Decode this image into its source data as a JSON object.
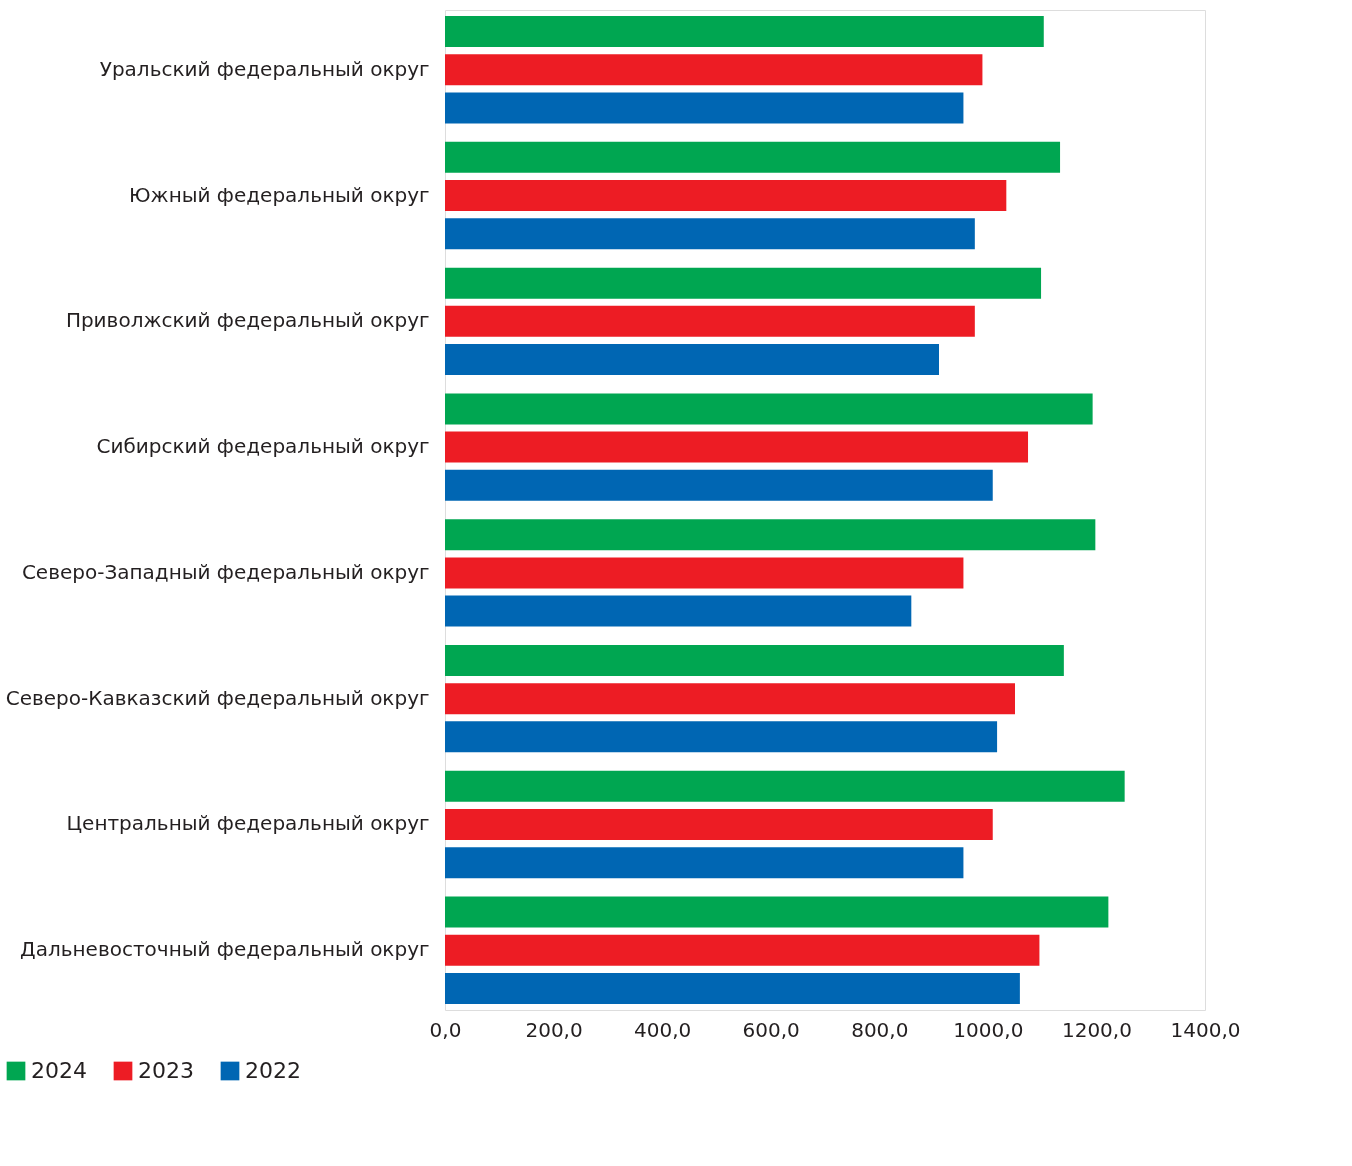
{
  "chart_data": {
    "type": "bar",
    "orientation": "horizontal",
    "categories": [
      "Уральский федеральный округ",
      "Южный федеральный округ",
      "Приволжский федеральный округ",
      "Сибирский федеральный округ",
      "Северо-Западный федеральный округ",
      "Северо-Кавказский федеральный округ",
      "Центральный федеральный округ",
      "Дальневосточный федеральный округ"
    ],
    "series": [
      {
        "name": "2024",
        "color": "#00a651",
        "values": [
          1103,
          1133,
          1098,
          1193,
          1198,
          1140,
          1252,
          1222
        ]
      },
      {
        "name": "2023",
        "color": "#ed1c24",
        "values": [
          990,
          1034,
          976,
          1074,
          955,
          1050,
          1009,
          1095
        ]
      },
      {
        "name": "2022",
        "color": "#0066b3",
        "values": [
          955,
          976,
          910,
          1009,
          859,
          1017,
          955,
          1059
        ]
      }
    ],
    "xlim": [
      0,
      1400
    ],
    "xticks": [
      {
        "value": 0,
        "label": "0,0"
      },
      {
        "value": 200,
        "label": "200,0"
      },
      {
        "value": 400,
        "label": "400,0"
      },
      {
        "value": 600,
        "label": "600,0"
      },
      {
        "value": 800,
        "label": "800,0"
      },
      {
        "value": 1000,
        "label": "1000,0"
      },
      {
        "value": 1200,
        "label": "1200,0"
      },
      {
        "value": 1400,
        "label": "1400,0"
      }
    ],
    "grid": false,
    "legend": "bottom left"
  }
}
